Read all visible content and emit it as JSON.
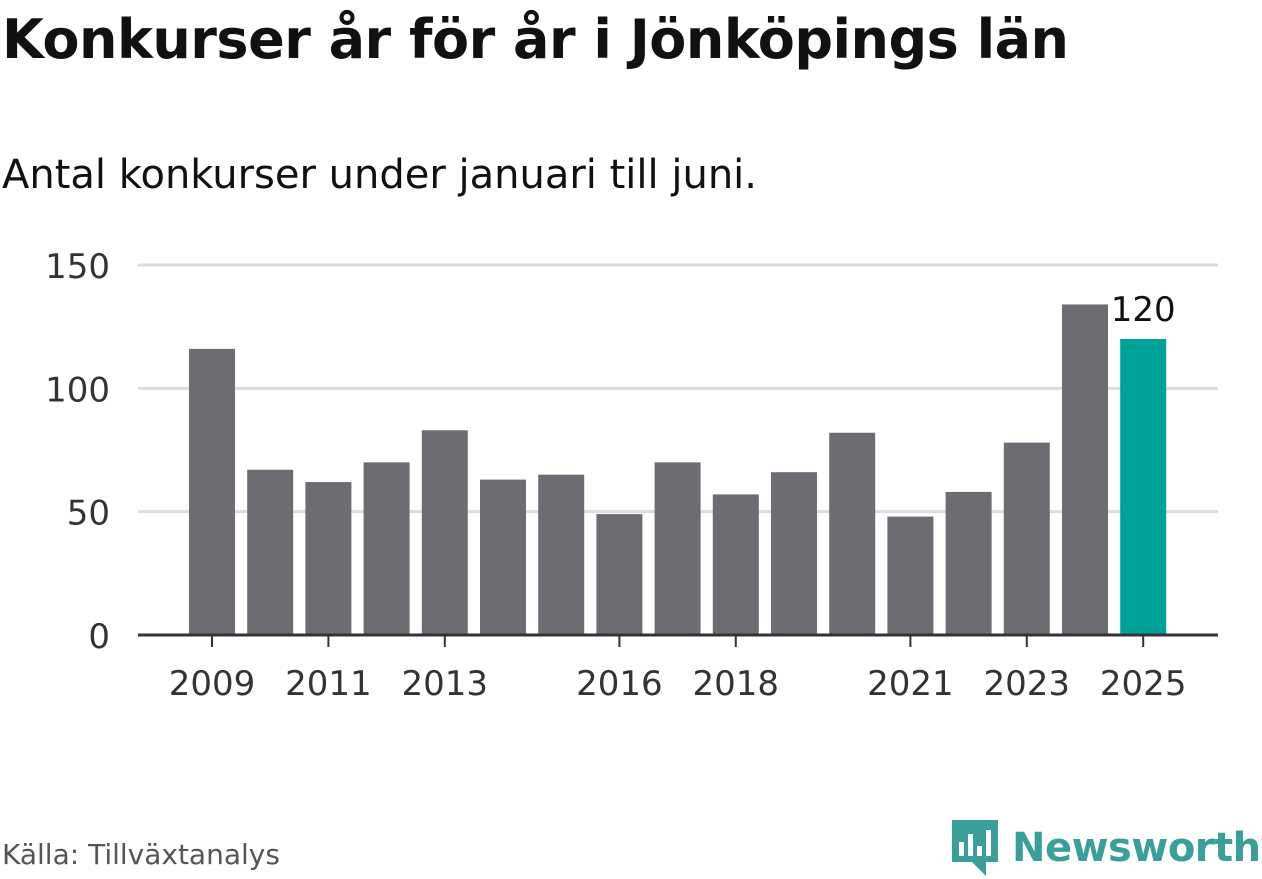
{
  "title": "Konkurser år för år i Jönköpings län",
  "subtitle": "Antal konkurser under januari till juni.",
  "source": "Källa: Tillväxtanalys",
  "brand": "Newsworthy",
  "colors": {
    "bar": "#6d6c72",
    "highlight": "#00a39a",
    "grid": "#dcdcdc",
    "axis": "#333333",
    "brand": "#3a9e9a"
  },
  "chart_data": {
    "type": "bar",
    "categories": [
      "2009",
      "2010",
      "2011",
      "2012",
      "2013",
      "2014",
      "2015",
      "2016",
      "2017",
      "2018",
      "2019",
      "2020",
      "2021",
      "2022",
      "2023",
      "2024",
      "2025"
    ],
    "values": [
      116,
      67,
      62,
      70,
      83,
      63,
      65,
      49,
      70,
      57,
      66,
      82,
      48,
      58,
      78,
      134,
      120
    ],
    "x_tick_labels": [
      "2009",
      "2011",
      "2013",
      "2016",
      "2018",
      "2021",
      "2023",
      "2025"
    ],
    "y_ticks": [
      0,
      50,
      100,
      150
    ],
    "ylim": [
      0,
      150
    ],
    "highlight_category": "2025",
    "data_labels": [
      {
        "category": "2025",
        "text": "120"
      }
    ],
    "grid": true,
    "legend": false,
    "title": "Konkurser år för år i Jönköpings län",
    "subtitle": "Antal konkurser under januari till juni."
  }
}
